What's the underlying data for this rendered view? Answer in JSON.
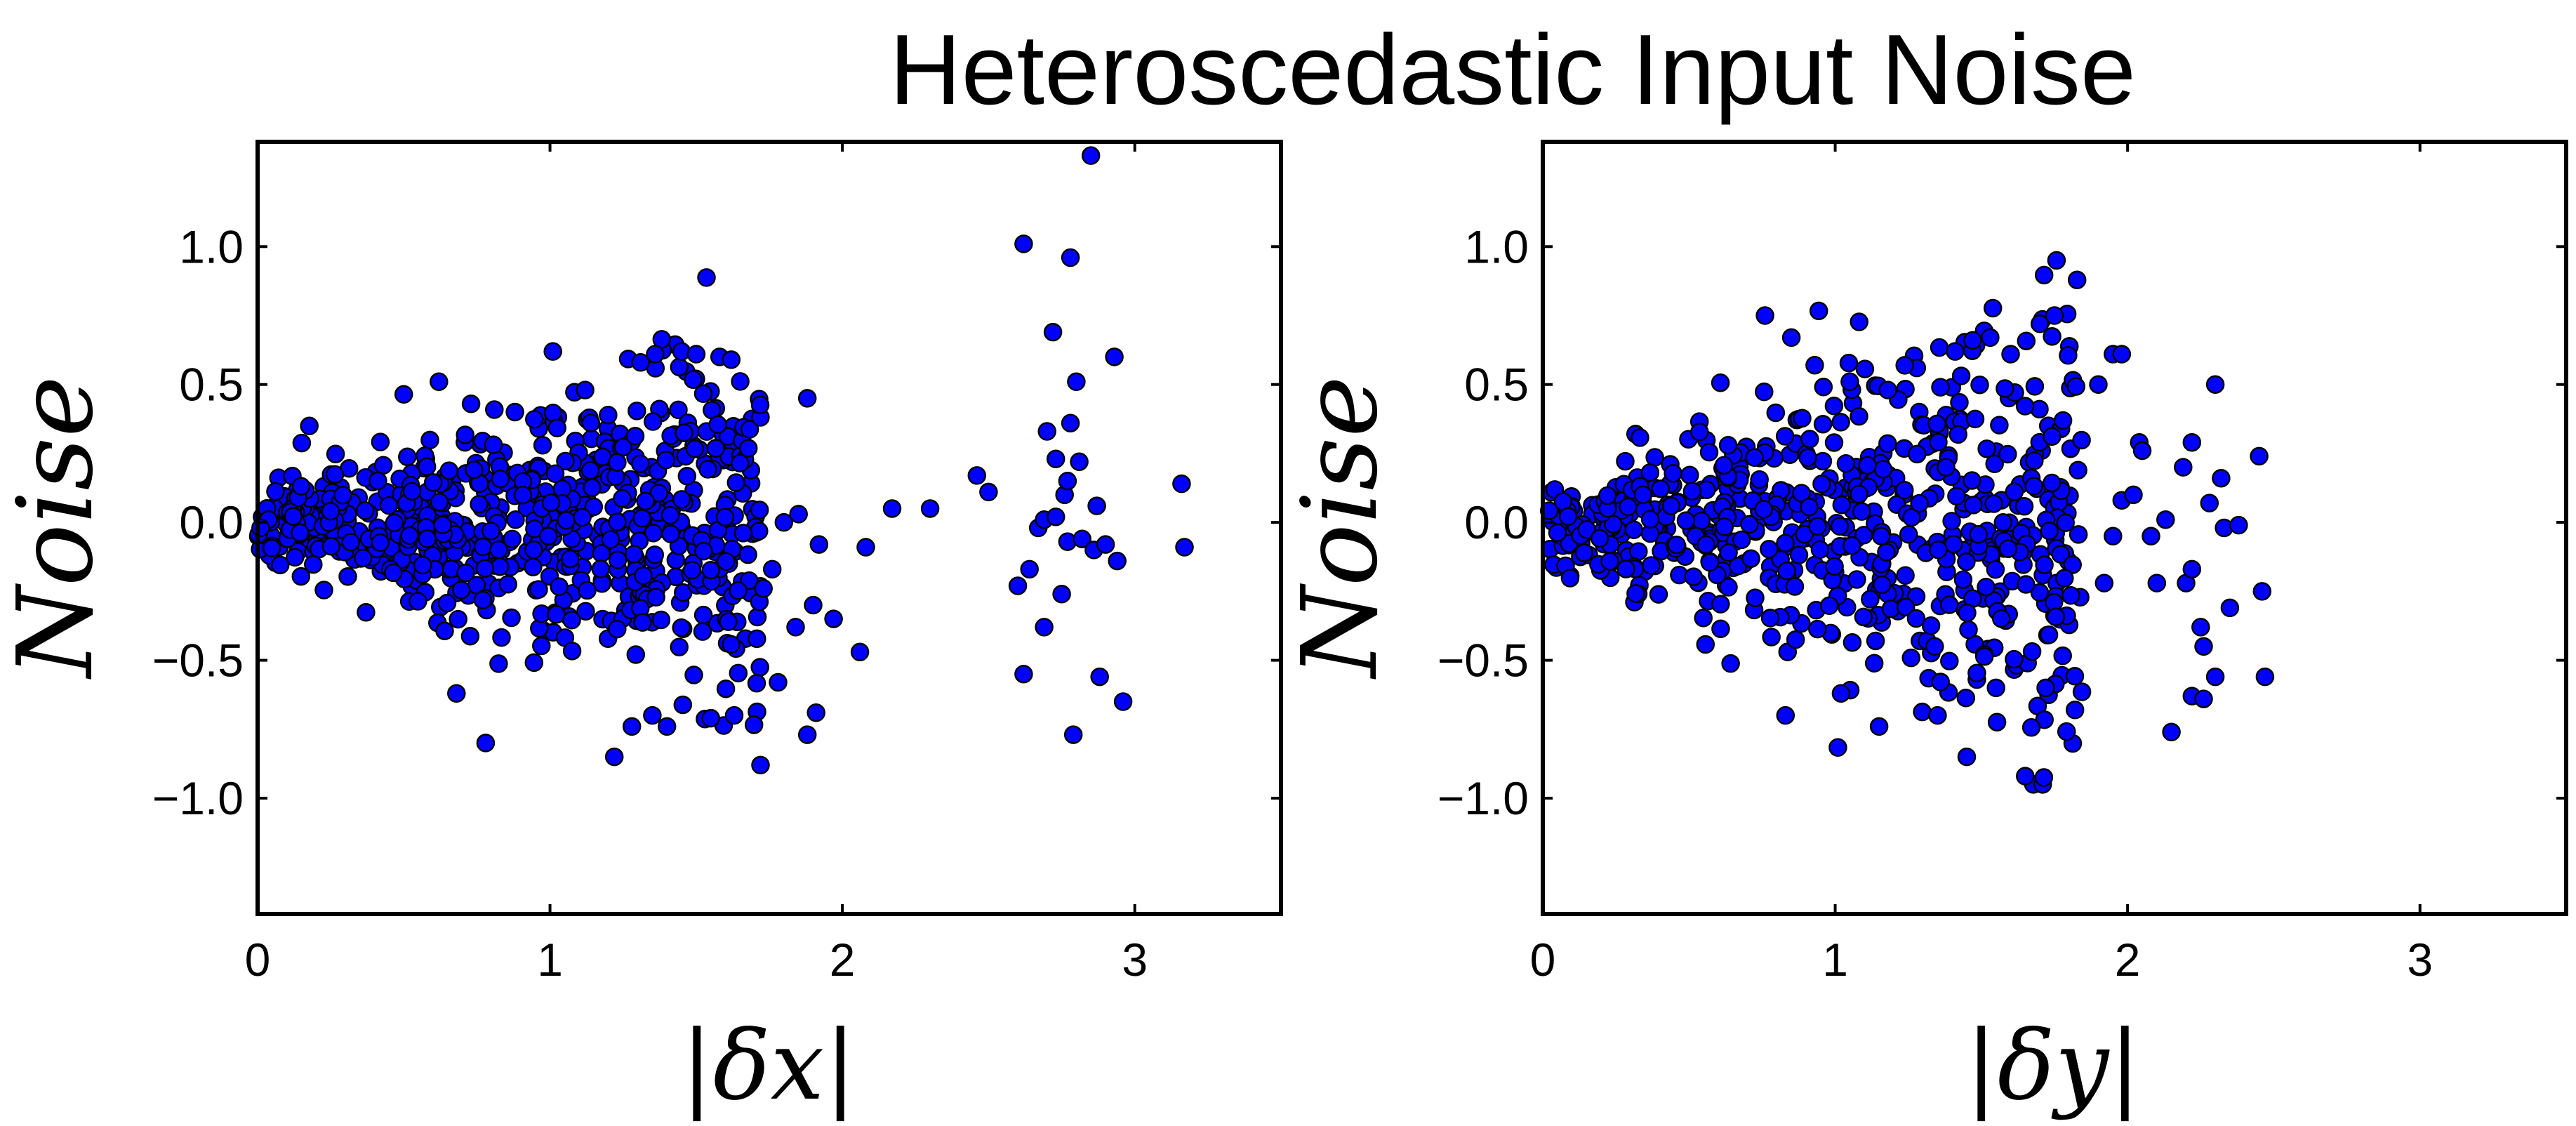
{
  "chart_data": {
    "title": "Heteroscedastic Input Noise",
    "colors": {
      "marker_fill": "#0000ff",
      "marker_edge": "#000000"
    },
    "panels": [
      {
        "type": "scatter",
        "xlabel": "|δx|",
        "ylabel": "Noise",
        "xlim": [
          0,
          3.5
        ],
        "ylim": [
          -1.42,
          1.38
        ],
        "xticks": [
          0,
          1,
          2,
          3
        ],
        "xticklabels": [
          "0",
          "1",
          "2",
          "3"
        ],
        "yticks": [
          -1.0,
          -0.5,
          0.0,
          0.5,
          1.0
        ],
        "yticklabels": [
          "−1.0",
          "−0.5",
          "0.0",
          "0.5",
          "1.0"
        ],
        "grid": false,
        "cloud": {
          "n": 720,
          "x_max": 1.72,
          "seed": 11,
          "amp": [
            0.07,
            0.16
          ]
        },
        "points": [
          [
            0.62,
            0.51
          ],
          [
            0.73,
            0.43
          ],
          [
            0.88,
            0.4
          ],
          [
            1.01,
            0.62
          ],
          [
            1.12,
            0.48
          ],
          [
            1.31,
            0.58
          ],
          [
            1.36,
            0.61
          ],
          [
            1.45,
            0.62
          ],
          [
            1.5,
            0.61
          ],
          [
            1.58,
            0.6
          ],
          [
            1.62,
            0.59
          ],
          [
            1.88,
            0.45
          ],
          [
            0.78,
            -0.8
          ],
          [
            0.68,
            -0.62
          ],
          [
            1.22,
            -0.85
          ],
          [
            1.28,
            -0.74
          ],
          [
            1.35,
            -0.7
          ],
          [
            1.4,
            -0.74
          ],
          [
            1.55,
            -0.71
          ],
          [
            1.63,
            -0.7
          ],
          [
            1.72,
            -0.88
          ],
          [
            1.88,
            -0.77
          ],
          [
            1.91,
            -0.69
          ],
          [
            1.78,
            -0.58
          ],
          [
            1.84,
            -0.38
          ],
          [
            1.9,
            -0.3
          ],
          [
            1.92,
            -0.08
          ],
          [
            1.97,
            -0.35
          ],
          [
            1.8,
            0.0
          ],
          [
            1.85,
            0.03
          ],
          [
            1.76,
            -0.17
          ],
          [
            1.73,
            -0.24
          ],
          [
            2.06,
            -0.47
          ],
          [
            2.08,
            -0.09
          ],
          [
            2.17,
            0.05
          ],
          [
            2.3,
            0.05
          ],
          [
            2.46,
            0.17
          ],
          [
            2.5,
            0.11
          ],
          [
            2.6,
            -0.23
          ],
          [
            2.62,
            -0.55
          ],
          [
            2.62,
            1.01
          ],
          [
            2.64,
            -0.17
          ],
          [
            2.67,
            -0.02
          ],
          [
            2.69,
            -0.38
          ],
          [
            2.7,
            0.33
          ],
          [
            2.72,
            0.69
          ],
          [
            2.73,
            0.23
          ],
          [
            2.75,
            -0.26
          ],
          [
            2.76,
            0.1
          ],
          [
            2.77,
            -0.07
          ],
          [
            2.78,
            0.96
          ],
          [
            2.78,
            0.36
          ],
          [
            2.79,
            -0.77
          ],
          [
            2.8,
            0.51
          ],
          [
            2.81,
            0.22
          ],
          [
            2.82,
            -0.06
          ],
          [
            2.85,
            1.33
          ],
          [
            2.86,
            -0.1
          ],
          [
            2.88,
            -0.56
          ],
          [
            2.9,
            -0.08
          ],
          [
            2.93,
            0.6
          ],
          [
            2.94,
            -0.14
          ],
          [
            2.96,
            -0.65
          ],
          [
            2.69,
            0.01
          ],
          [
            2.73,
            0.02
          ],
          [
            2.77,
            0.15
          ],
          [
            2.87,
            0.06
          ],
          [
            3.16,
            0.14
          ],
          [
            3.17,
            -0.09
          ]
        ]
      },
      {
        "type": "scatter",
        "xlabel": "|δy|",
        "ylabel": "Noise",
        "xlim": [
          0,
          3.5
        ],
        "ylim": [
          -1.42,
          1.38
        ],
        "xticks": [
          0,
          1,
          2,
          3
        ],
        "xticklabels": [
          "0",
          "1",
          "2",
          "3"
        ],
        "yticks": [
          -1.0,
          -0.5,
          0.0,
          0.5,
          1.0
        ],
        "yticklabels": [
          "−1.0",
          "−0.5",
          "0.0",
          "0.5",
          "1.0"
        ],
        "grid": false,
        "cloud": {
          "n": 640,
          "x_max": 1.86,
          "seed": 29,
          "amp": [
            0.07,
            0.2
          ]
        },
        "points": [
          [
            0.76,
            0.75
          ],
          [
            0.85,
            0.67
          ],
          [
            0.93,
            0.57
          ],
          [
            1.05,
            0.51
          ],
          [
            1.18,
            0.48
          ],
          [
            1.36,
            0.49
          ],
          [
            1.41,
            0.62
          ],
          [
            1.47,
            0.66
          ],
          [
            1.53,
            0.67
          ],
          [
            1.6,
            0.61
          ],
          [
            1.7,
            0.72
          ],
          [
            1.75,
            0.75
          ],
          [
            1.95,
            0.61
          ],
          [
            1.98,
            0.61
          ],
          [
            0.83,
            -0.7
          ],
          [
            1.02,
            -0.62
          ],
          [
            1.15,
            -0.74
          ],
          [
            1.35,
            -0.7
          ],
          [
            1.45,
            -0.85
          ],
          [
            1.55,
            -0.6
          ],
          [
            1.65,
            -0.92
          ],
          [
            1.72,
            -0.6
          ],
          [
            1.82,
            -0.68
          ],
          [
            1.9,
            0.5
          ],
          [
            1.92,
            -0.22
          ],
          [
            1.95,
            -0.05
          ],
          [
            1.98,
            0.08
          ],
          [
            2.02,
            0.1
          ],
          [
            2.04,
            0.29
          ],
          [
            2.08,
            -0.05
          ],
          [
            2.1,
            -0.22
          ],
          [
            2.15,
            -0.76
          ],
          [
            2.2,
            -0.22
          ],
          [
            2.22,
            -0.63
          ],
          [
            2.25,
            -0.38
          ],
          [
            2.26,
            -0.45
          ],
          [
            2.28,
            0.07
          ],
          [
            2.3,
            0.5
          ],
          [
            2.32,
            0.16
          ],
          [
            2.33,
            -0.02
          ],
          [
            2.35,
            -0.31
          ],
          [
            2.3,
            -0.56
          ],
          [
            2.26,
            -0.64
          ],
          [
            2.22,
            0.29
          ],
          [
            2.19,
            0.2
          ],
          [
            2.13,
            0.01
          ],
          [
            2.45,
            0.24
          ],
          [
            2.46,
            -0.25
          ],
          [
            2.47,
            -0.56
          ],
          [
            2.38,
            -0.01
          ],
          [
            2.22,
            -0.17
          ],
          [
            2.05,
            0.26
          ]
        ]
      }
    ]
  }
}
